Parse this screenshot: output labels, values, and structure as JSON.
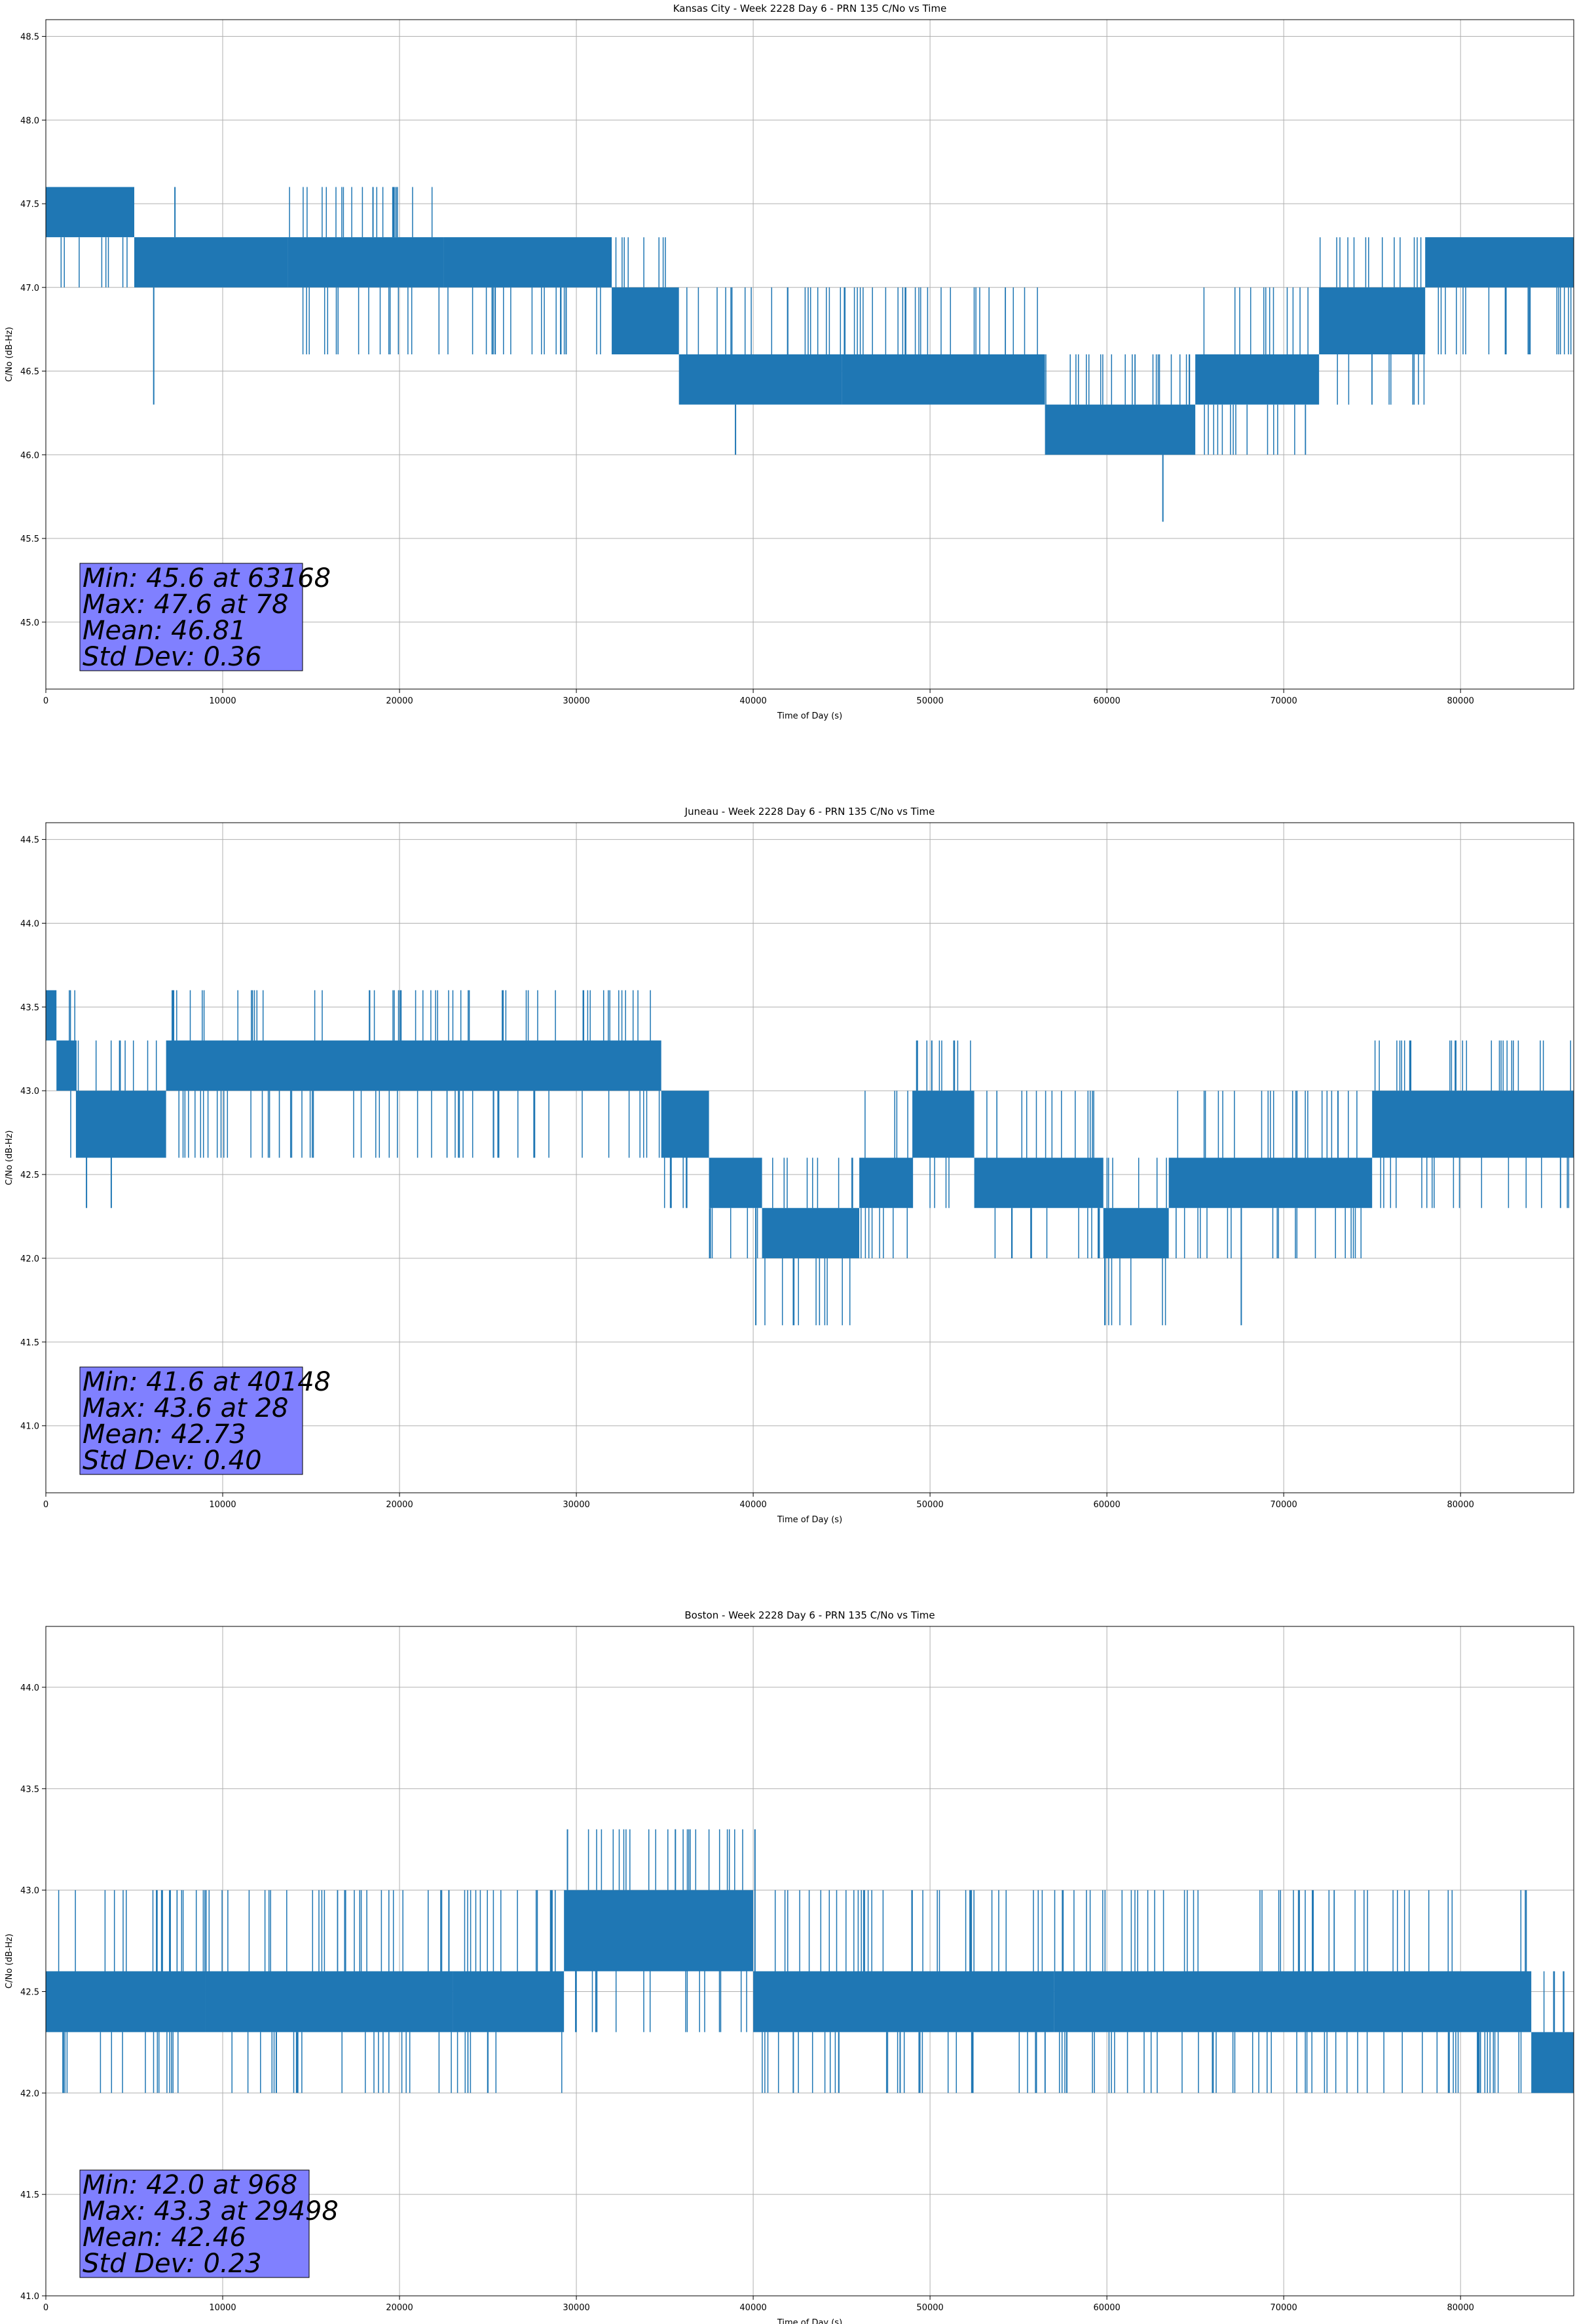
{
  "colors": {
    "series": "#1f77b4",
    "grid": "#b0b0b0",
    "stats_box": "#8080ff",
    "axis": "#000000"
  },
  "chart_data": [
    {
      "type": "line",
      "title": "Kansas City - Week 2228 Day 6 - PRN 135 C/No vs Time",
      "xlabel": "Time of Day (s)",
      "ylabel": "C/No (dB-Hz)",
      "xlim": [
        0,
        86400
      ],
      "ylim": [
        44.6,
        48.6
      ],
      "grid": true,
      "xticks": [
        0,
        10000,
        20000,
        30000,
        40000,
        50000,
        60000,
        70000,
        80000
      ],
      "yticks": [
        45.0,
        45.5,
        46.0,
        46.5,
        47.0,
        47.5,
        48.0,
        48.5
      ],
      "series": [
        {
          "segments": [
            {
              "x": [
                0,
                5000
              ],
              "band": [
                47.3,
                47.6
              ],
              "spread": [
                47.0,
                47.6
              ]
            },
            {
              "x": [
                5000,
                13700
              ],
              "band": [
                47.0,
                47.3
              ],
              "spread": [
                47.0,
                47.3
              ]
            },
            {
              "x": [
                13700,
                22500
              ],
              "band": [
                47.0,
                47.3
              ],
              "spread": [
                46.6,
                47.6
              ]
            },
            {
              "x": [
                22500,
                32000
              ],
              "band": [
                47.0,
                47.3
              ],
              "spread": [
                46.6,
                47.3
              ]
            },
            {
              "x": [
                32000,
                35800
              ],
              "band": [
                46.6,
                47.0
              ],
              "spread": [
                46.6,
                47.3
              ]
            },
            {
              "x": [
                35800,
                45000
              ],
              "band": [
                46.3,
                46.6
              ],
              "spread": [
                46.3,
                47.0
              ]
            },
            {
              "x": [
                45000,
                56500
              ],
              "band": [
                46.3,
                46.6
              ],
              "spread": [
                46.3,
                47.0
              ]
            },
            {
              "x": [
                56500,
                65000
              ],
              "band": [
                46.0,
                46.3
              ],
              "spread": [
                46.0,
                46.6
              ]
            },
            {
              "x": [
                65000,
                72000
              ],
              "band": [
                46.3,
                46.6
              ],
              "spread": [
                46.0,
                47.0
              ]
            },
            {
              "x": [
                72000,
                78000
              ],
              "band": [
                46.6,
                47.0
              ],
              "spread": [
                46.3,
                47.3
              ]
            },
            {
              "x": [
                78000,
                86400
              ],
              "band": [
                47.0,
                47.3
              ],
              "spread": [
                46.6,
                47.3
              ]
            }
          ],
          "spikes": [
            {
              "x": 6100,
              "y": 46.3
            },
            {
              "x": 63168,
              "y": 45.6
            },
            {
              "x": 39000,
              "y": 46.0
            },
            {
              "x": 7300,
              "y": 47.6
            },
            {
              "x": 18500,
              "y": 47.6
            },
            {
              "x": 19800,
              "y": 47.6
            }
          ]
        }
      ],
      "stats": {
        "min": "Min: 45.6 at 63168",
        "max": "Max: 47.6 at 78",
        "mean": "Mean: 46.81",
        "std": "Std Dev: 0.36"
      }
    },
    {
      "type": "line",
      "title": "Juneau - Week 2228 Day 6 - PRN 135 C/No vs Time",
      "xlabel": "Time of Day (s)",
      "ylabel": "C/No (dB-Hz)",
      "xlim": [
        0,
        86400
      ],
      "ylim": [
        40.6,
        44.6
      ],
      "grid": true,
      "xticks": [
        0,
        10000,
        20000,
        30000,
        40000,
        50000,
        60000,
        70000,
        80000
      ],
      "yticks": [
        41.0,
        41.5,
        42.0,
        42.5,
        43.0,
        43.5,
        44.0,
        44.5
      ],
      "series": [
        {
          "segments": [
            {
              "x": [
                0,
                600
              ],
              "band": [
                43.3,
                43.6
              ],
              "spread": [
                43.0,
                43.6
              ]
            },
            {
              "x": [
                600,
                1700
              ],
              "band": [
                43.0,
                43.3
              ],
              "spread": [
                42.6,
                43.6
              ]
            },
            {
              "x": [
                1700,
                6800
              ],
              "band": [
                42.6,
                43.0
              ],
              "spread": [
                42.6,
                43.3
              ]
            },
            {
              "x": [
                6800,
                34800
              ],
              "band": [
                43.0,
                43.3
              ],
              "spread": [
                42.6,
                43.6
              ]
            },
            {
              "x": [
                34800,
                37500
              ],
              "band": [
                42.6,
                43.0
              ],
              "spread": [
                42.3,
                43.0
              ]
            },
            {
              "x": [
                37500,
                40500
              ],
              "band": [
                42.3,
                42.6
              ],
              "spread": [
                42.0,
                42.6
              ]
            },
            {
              "x": [
                40500,
                46000
              ],
              "band": [
                42.0,
                42.3
              ],
              "spread": [
                41.6,
                42.6
              ]
            },
            {
              "x": [
                46000,
                49000
              ],
              "band": [
                42.3,
                42.6
              ],
              "spread": [
                42.0,
                43.0
              ]
            },
            {
              "x": [
                49000,
                52500
              ],
              "band": [
                42.6,
                43.0
              ],
              "spread": [
                42.3,
                43.3
              ]
            },
            {
              "x": [
                52500,
                59800
              ],
              "band": [
                42.3,
                42.6
              ],
              "spread": [
                42.0,
                43.0
              ]
            },
            {
              "x": [
                59800,
                63500
              ],
              "band": [
                42.0,
                42.3
              ],
              "spread": [
                41.6,
                42.6
              ]
            },
            {
              "x": [
                63500,
                75000
              ],
              "band": [
                42.3,
                42.6
              ],
              "spread": [
                42.0,
                43.0
              ]
            },
            {
              "x": [
                75000,
                86400
              ],
              "band": [
                42.6,
                43.0
              ],
              "spread": [
                42.3,
                43.3
              ]
            }
          ],
          "spikes": [
            {
              "x": 2300,
              "y": 42.3
            },
            {
              "x": 3700,
              "y": 42.3
            },
            {
              "x": 67600,
              "y": 41.6
            },
            {
              "x": 40148,
              "y": 41.6
            },
            {
              "x": 50100,
              "y": 43.3
            }
          ]
        }
      ],
      "stats": {
        "min": "Min: 41.6 at 40148",
        "max": "Max: 43.6 at 28",
        "mean": "Mean: 42.73",
        "std": "Std Dev: 0.40"
      }
    },
    {
      "type": "line",
      "title": "Boston - Week 2228 Day 6 - PRN 135 C/No vs Time",
      "xlabel": "Time of Day (s)",
      "ylabel": "C/No (dB-Hz)",
      "xlim": [
        0,
        86400
      ],
      "ylim": [
        41.0,
        44.3
      ],
      "grid": true,
      "xticks": [
        0,
        10000,
        20000,
        30000,
        40000,
        50000,
        60000,
        70000,
        80000
      ],
      "yticks": [
        41.0,
        41.5,
        42.0,
        42.5,
        43.0,
        43.5,
        44.0
      ],
      "series": [
        {
          "segments": [
            {
              "x": [
                0,
                9000
              ],
              "band": [
                42.3,
                42.6
              ],
              "spread": [
                42.0,
                43.0
              ]
            },
            {
              "x": [
                9000,
                23000
              ],
              "band": [
                42.3,
                42.6
              ],
              "spread": [
                42.0,
                43.0
              ]
            },
            {
              "x": [
                23000,
                29300
              ],
              "band": [
                42.3,
                42.6
              ],
              "spread": [
                42.0,
                43.0
              ]
            },
            {
              "x": [
                29300,
                40000
              ],
              "band": [
                42.6,
                43.0
              ],
              "spread": [
                42.3,
                43.3
              ]
            },
            {
              "x": [
                40000,
                57000
              ],
              "band": [
                42.3,
                42.6
              ],
              "spread": [
                42.0,
                43.0
              ]
            },
            {
              "x": [
                57000,
                84000
              ],
              "band": [
                42.3,
                42.6
              ],
              "spread": [
                42.0,
                43.0
              ]
            },
            {
              "x": [
                84000,
                86400
              ],
              "band": [
                42.0,
                42.3
              ],
              "spread": [
                42.0,
                42.6
              ]
            }
          ],
          "spikes": [
            {
              "x": 968,
              "y": 42.0
            },
            {
              "x": 29498,
              "y": 43.3
            },
            {
              "x": 40100,
              "y": 43.3
            },
            {
              "x": 35600,
              "y": 43.3
            }
          ]
        }
      ],
      "stats": {
        "min": "Min: 42.0 at 968",
        "max": "Max: 43.3 at 29498",
        "mean": "Mean: 42.46",
        "std": "Std Dev: 0.23"
      }
    }
  ]
}
